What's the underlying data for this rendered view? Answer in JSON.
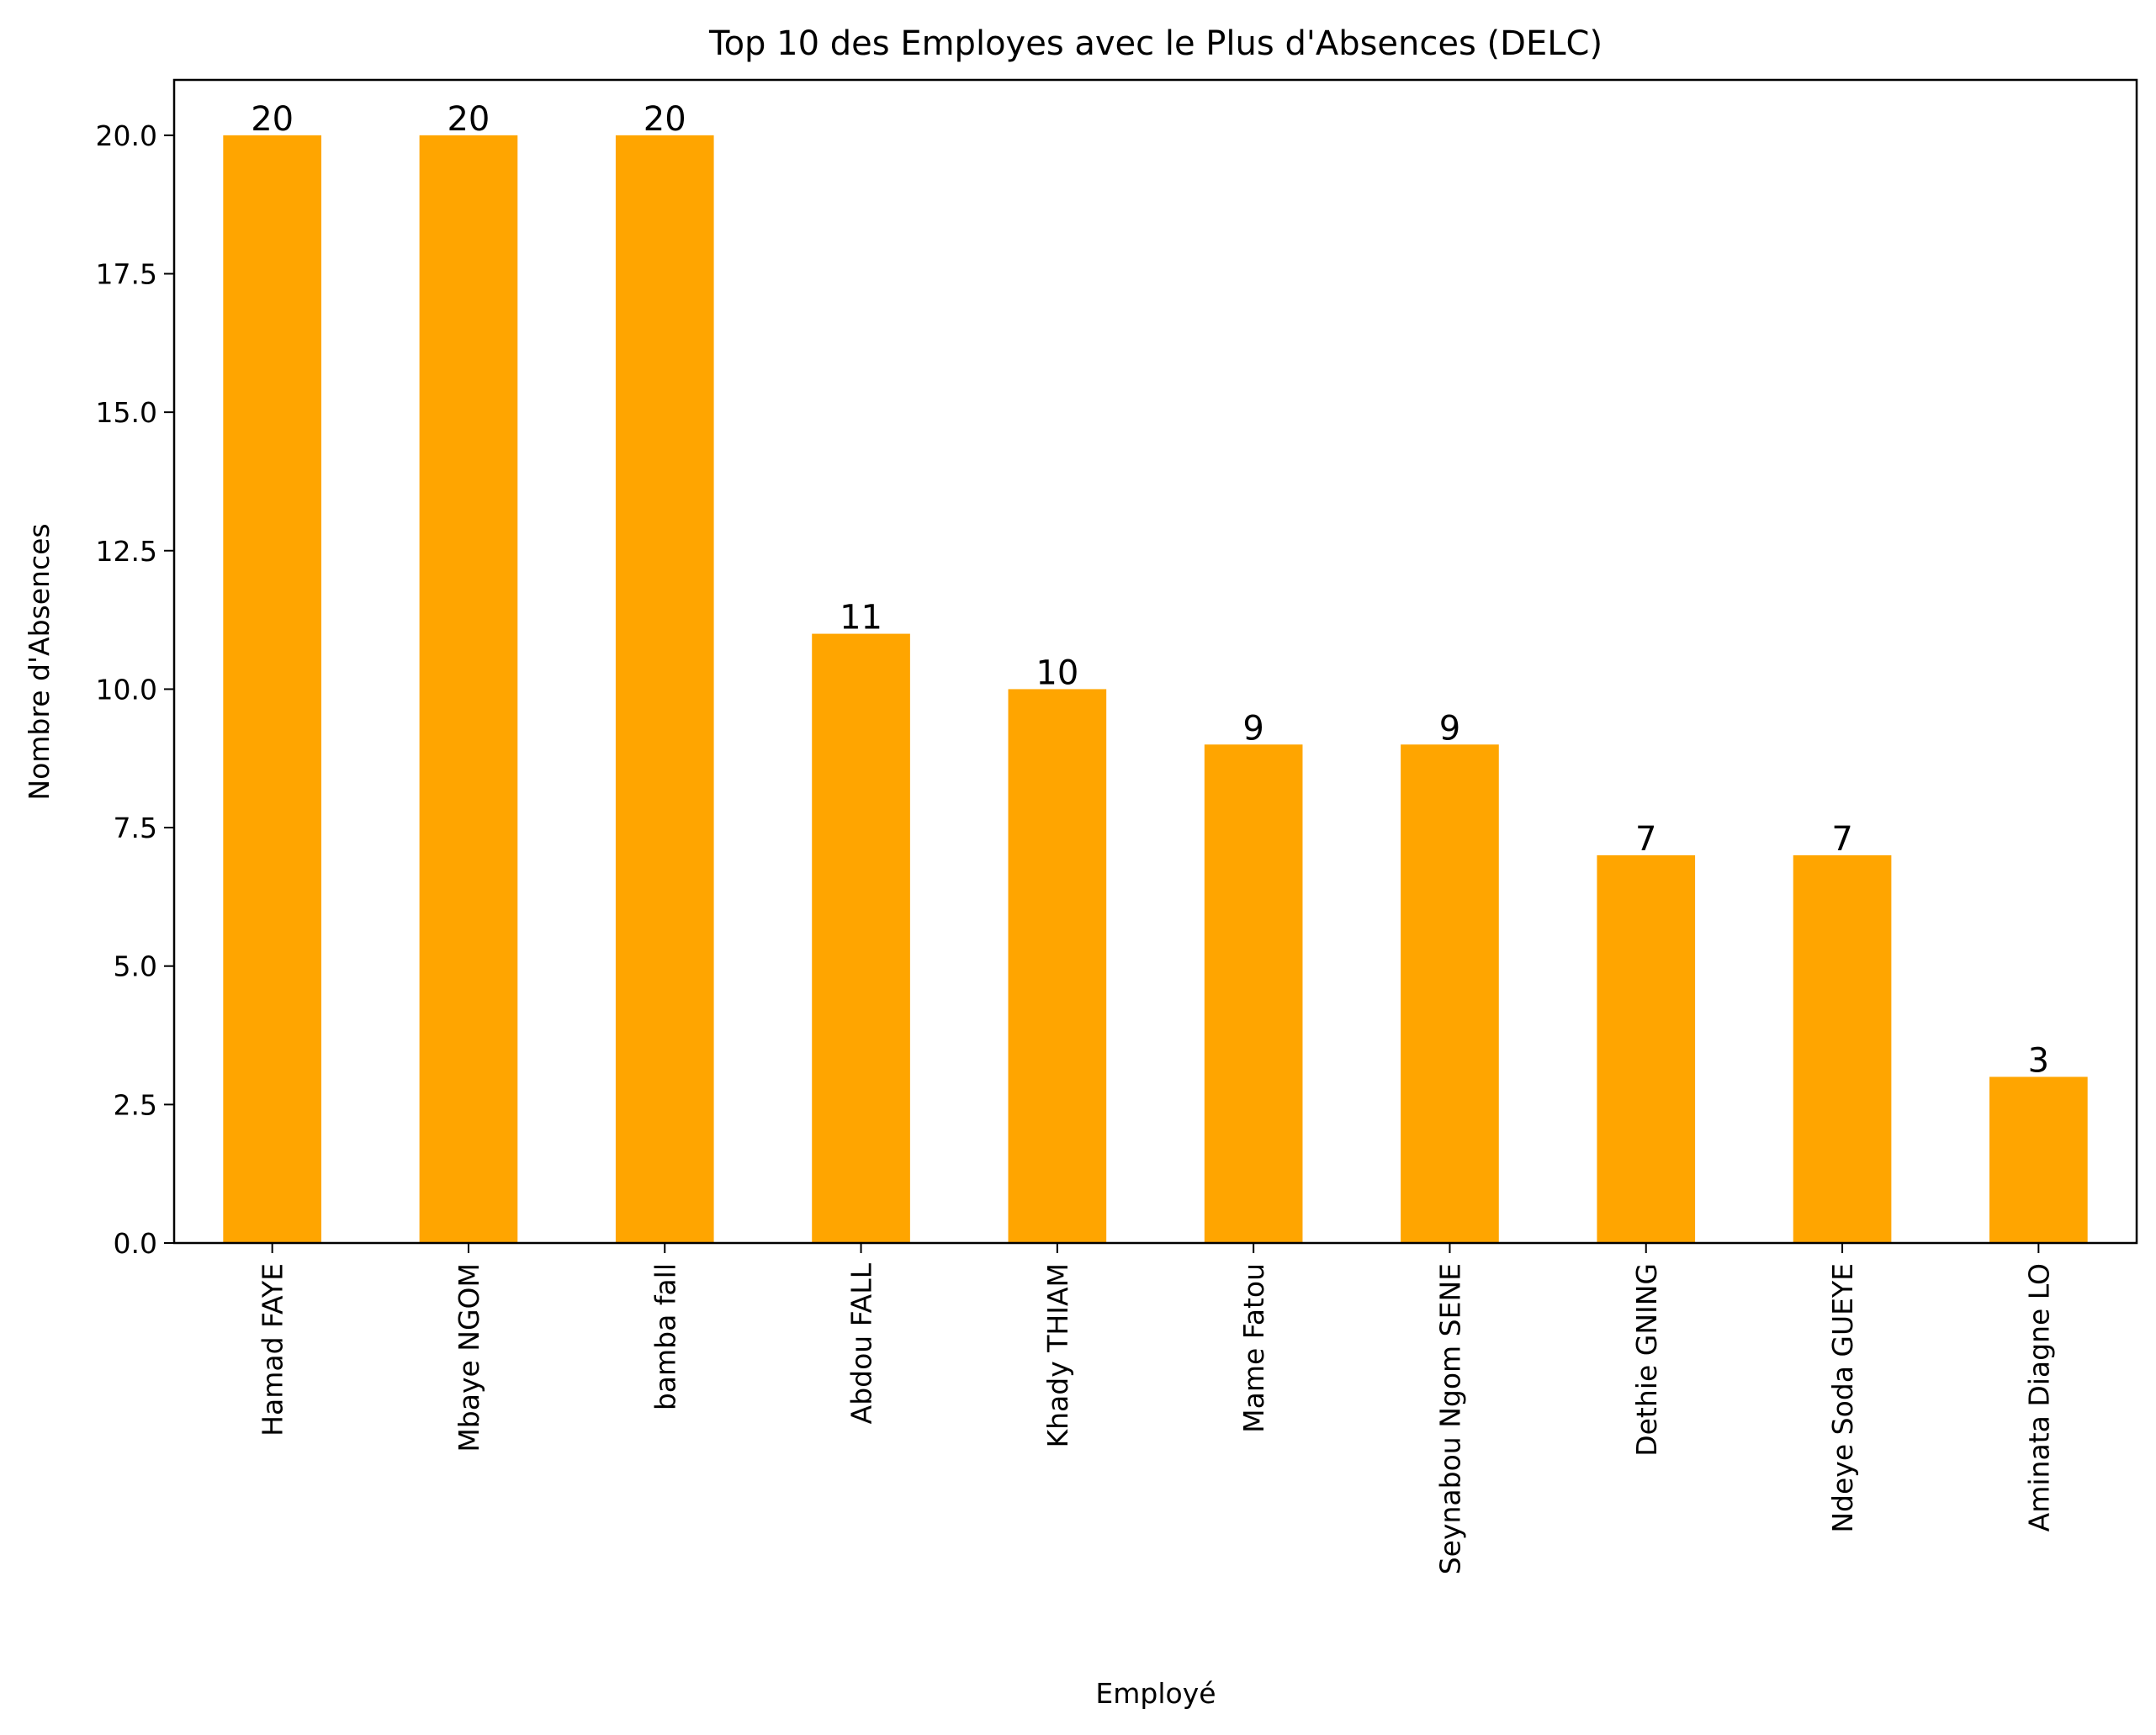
{
  "chart_data": {
    "type": "bar",
    "title": "Top 10 des Employes avec le Plus d'Absences (DELC)",
    "xlabel": "Employé",
    "ylabel": "Nombre d'Absences",
    "categories": [
      "Hamad FAYE",
      "Mbaye NGOM",
      "bamba fall",
      "Abdou FALL",
      "Khady THIAM",
      "Mame Fatou",
      "Seynabou Ngom SENE",
      "Dethie GNING",
      "Ndeye Soda GUEYE",
      "Aminata Diagne LO"
    ],
    "values": [
      20,
      20,
      20,
      11,
      10,
      9,
      9,
      7,
      7,
      3
    ],
    "data_labels": [
      "20",
      "20",
      "20",
      "11",
      "10",
      "9",
      "9",
      "7",
      "7",
      "3"
    ],
    "yticks": [
      0,
      2.5,
      5,
      7.5,
      10,
      12.5,
      15,
      17.5,
      20
    ],
    "ytick_labels": [
      "0.0",
      "2.5",
      "5.0",
      "7.5",
      "10.0",
      "12.5",
      "15.0",
      "17.5",
      "20.0"
    ],
    "ylim": [
      0,
      21
    ],
    "grid": false,
    "bar_color": "#FFA500"
  }
}
